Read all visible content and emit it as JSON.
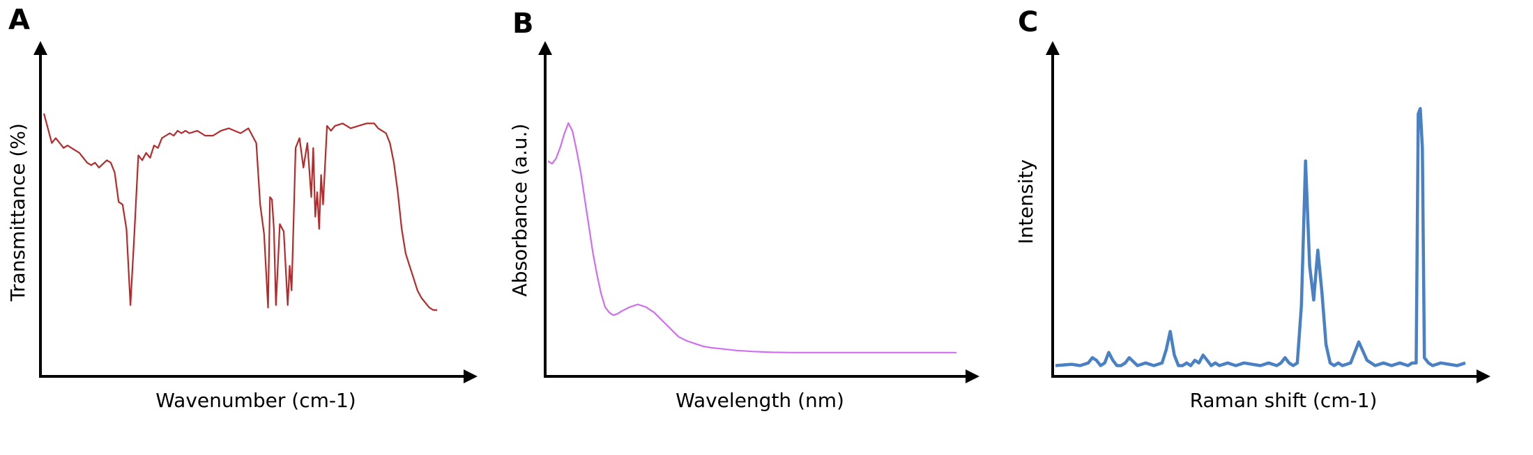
{
  "figure": {
    "panels": [
      {
        "letter": "A",
        "xlabel": "Wavenumber (cm-1)",
        "ylabel": "Transmittance (%)",
        "line_color": "#b52a2a"
      },
      {
        "letter": "B",
        "xlabel": "Wavelength (nm)",
        "ylabel": "Absorbance (a.u.)",
        "line_color": "#cf6ef0"
      },
      {
        "letter": "C",
        "xlabel": "Raman shift (cm-1)",
        "ylabel": "Intensity",
        "line_color": "#4a80c4"
      }
    ]
  },
  "chart_data": [
    {
      "type": "line",
      "title": "",
      "xlabel": "Wavenumber (cm-1)",
      "ylabel": "Transmittance (%)",
      "ticks": "none",
      "grid": false,
      "note_units": "relative, no numeric axes shown; x 0-100 left-to-right, y 0-100 bottom-to-top",
      "series": [
        {
          "color": "#b52a2a",
          "x": [
            0,
            2,
            3,
            4,
            5,
            6,
            7,
            8,
            9,
            10,
            11,
            12,
            13,
            14,
            16,
            17,
            18,
            19,
            20,
            21,
            22,
            23,
            24,
            25,
            26,
            27,
            28,
            29,
            30,
            31,
            32,
            33,
            34,
            35,
            36,
            37,
            39,
            41,
            43,
            45,
            47,
            50,
            52,
            54,
            55,
            56,
            57,
            57.5,
            58,
            58.5,
            59,
            60,
            61,
            62,
            62.5,
            63,
            63.5,
            64,
            65,
            66,
            67,
            68,
            68.5,
            69,
            69.5,
            70,
            70.5,
            71,
            72,
            73,
            74,
            76,
            78,
            80,
            82,
            84,
            85,
            86,
            87,
            88,
            89,
            90,
            91,
            92,
            93,
            94,
            95,
            96,
            97,
            98,
            99,
            100
          ],
          "y": [
            92,
            80,
            82,
            80,
            78,
            79,
            78,
            77,
            76,
            74,
            72,
            71,
            72,
            70,
            73,
            72,
            68,
            56,
            55,
            45,
            14,
            43,
            75,
            73,
            76,
            74,
            79,
            78,
            82,
            83,
            84,
            83,
            85,
            84,
            85,
            84,
            85,
            83,
            83,
            85,
            86,
            84,
            86,
            80,
            55,
            43,
            13,
            58,
            57,
            45,
            14,
            47,
            44,
            14,
            30,
            20,
            48,
            78,
            82,
            70,
            80,
            58,
            78,
            50,
            60,
            45,
            67,
            55,
            87,
            85,
            87,
            88,
            86,
            87,
            88,
            88,
            86,
            85,
            84,
            80,
            72,
            60,
            45,
            35,
            30,
            25,
            20,
            17,
            15,
            13,
            12,
            12
          ]
        }
      ]
    },
    {
      "type": "line",
      "title": "",
      "xlabel": "Wavelength (nm)",
      "ylabel": "Absorbance (a.u.)",
      "ticks": "none",
      "grid": false,
      "note_units": "relative, no numeric axes shown; x 0-100 left-to-right, y 0-100 bottom-to-top",
      "series": [
        {
          "color": "#cf6ef0",
          "x": [
            0,
            1,
            2,
            3,
            4,
            5,
            6,
            7,
            8,
            9,
            10,
            11,
            12,
            13,
            14,
            15,
            16,
            17,
            18,
            20,
            22,
            24,
            26,
            28,
            30,
            32,
            34,
            36,
            38,
            40,
            43,
            46,
            50,
            55,
            60,
            65,
            70,
            75,
            80,
            85,
            90,
            95,
            100
          ],
          "y": [
            76,
            75,
            77,
            81,
            86,
            90,
            87,
            80,
            72,
            62,
            52,
            42,
            34,
            27,
            22,
            20,
            19,
            19.5,
            20.5,
            22,
            23,
            22,
            20,
            17,
            14,
            11,
            9.5,
            8.5,
            7.5,
            7,
            6.5,
            6,
            5.6,
            5.3,
            5.2,
            5.2,
            5.2,
            5.2,
            5.2,
            5.2,
            5.2,
            5.2,
            5.2
          ]
        }
      ]
    },
    {
      "type": "line",
      "title": "",
      "xlabel": "Raman shift (cm-1)",
      "ylabel": "Intensity",
      "ticks": "none",
      "grid": false,
      "note_units": "relative, no numeric axes shown; x 0-100 left-to-right, y 0-100 bottom-to-top",
      "series": [
        {
          "color": "#4a80c4",
          "x": [
            0,
            4,
            6,
            8,
            9,
            10,
            11,
            12,
            13,
            14,
            15,
            16,
            17,
            18,
            20,
            22,
            24,
            26,
            27,
            28,
            29,
            30,
            31,
            32,
            33,
            34,
            35,
            36,
            37,
            38,
            39,
            40,
            42,
            44,
            46,
            48,
            50,
            52,
            54,
            55,
            56,
            57,
            58,
            59,
            60,
            61,
            62,
            63,
            64,
            65,
            66,
            67,
            68,
            69,
            70,
            72,
            74,
            76,
            78,
            80,
            82,
            84,
            86,
            87,
            88,
            88.5,
            89,
            89.5,
            90,
            91,
            92,
            94,
            96,
            98,
            100
          ],
          "y": [
            2,
            2.5,
            2,
            3,
            5,
            4,
            2,
            3,
            7,
            4,
            2,
            2,
            3,
            5,
            2,
            3,
            2,
            3,
            8,
            15,
            6,
            2,
            2,
            3,
            2,
            4,
            3,
            6,
            4,
            2,
            3,
            2,
            3,
            2,
            3,
            2.5,
            2,
            3,
            2,
            3,
            5,
            3,
            2,
            3,
            25,
            80,
            40,
            27,
            46,
            30,
            10,
            3,
            2,
            3,
            2,
            3,
            11,
            4,
            2,
            3,
            2,
            3,
            2,
            3,
            3,
            98,
            100,
            85,
            5,
            3,
            2,
            3,
            2.5,
            2,
            3
          ]
        }
      ]
    }
  ]
}
